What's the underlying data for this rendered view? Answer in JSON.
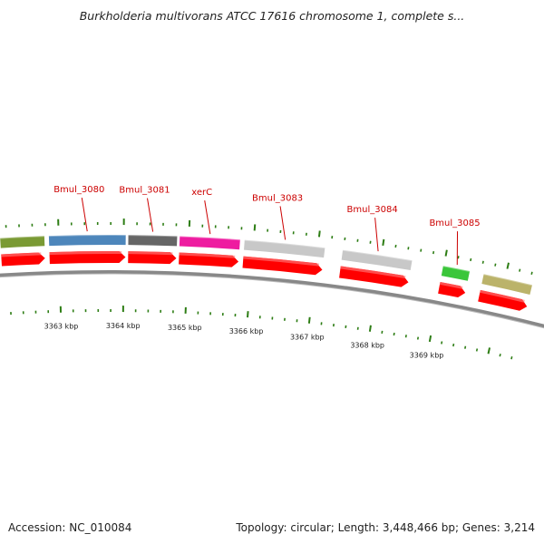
{
  "title": "Burkholderia multivorans ATCC 17616 chromosome 1, complete s...",
  "footer": {
    "accession": "Accession: NC_010084",
    "summary": "Topology: circular; Length: 3,448,466 bp; Genes: 3,214"
  },
  "colors": {
    "cds_arrow": "#ff0000",
    "label": "#cc0000",
    "tick": "#2d7d14",
    "backbone": "#888888"
  },
  "scale": {
    "start_kbp": 3362.1,
    "end_kbp": 3370.45
  },
  "ticks": [
    {
      "kbp": 3363,
      "label": "3363 kbp"
    },
    {
      "kbp": 3364,
      "label": "3364 kbp"
    },
    {
      "kbp": 3365,
      "label": "3365 kbp"
    },
    {
      "kbp": 3366,
      "label": "3366 kbp"
    },
    {
      "kbp": 3367,
      "label": "3367 kbp"
    },
    {
      "kbp": 3368,
      "label": "3368 kbp"
    },
    {
      "kbp": 3369,
      "label": "3369 kbp"
    }
  ],
  "genes": [
    {
      "label": "",
      "start_kbp": 3362.1,
      "end_kbp": 3362.78,
      "color": "#7a9a34"
    },
    {
      "label": "Bmul_3080",
      "start_kbp": 3362.85,
      "end_kbp": 3364.03,
      "color": "#4d86bb"
    },
    {
      "label": "Bmul_3081",
      "start_kbp": 3364.07,
      "end_kbp": 3364.82,
      "color": "#666666"
    },
    {
      "label": "xerC",
      "start_kbp": 3364.86,
      "end_kbp": 3365.79,
      "color": "#ee1ca0"
    },
    {
      "label": "Bmul_3083",
      "start_kbp": 3365.86,
      "end_kbp": 3367.11,
      "color": "#c8c8c8"
    },
    {
      "label": "Bmul_3084",
      "start_kbp": 3367.39,
      "end_kbp": 3368.49,
      "color": "#c8c8c8"
    },
    {
      "label": "Bmul_3085",
      "start_kbp": 3368.99,
      "end_kbp": 3369.42,
      "color": "#3ac63a"
    },
    {
      "label": "",
      "start_kbp": 3369.65,
      "end_kbp": 3370.45,
      "color": "#bbb36a"
    }
  ]
}
